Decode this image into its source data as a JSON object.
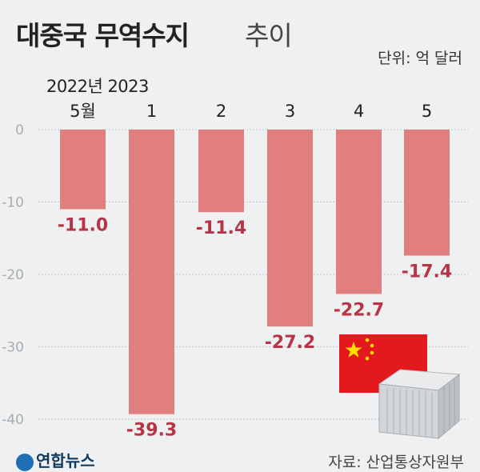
{
  "title": {
    "bold": "대중국 무역수지",
    "light": "추이"
  },
  "unit": "단위: 억 달러",
  "year_label": "2022년 2023",
  "credit": "연합뉴스",
  "source": "자료: 산업통상자원부",
  "colors": {
    "bar": "#e07f7e",
    "label": "#b73446",
    "grid": "#c4c7ca",
    "tick": "#a9acaf"
  },
  "decor": {
    "flag": "china-flag-icon",
    "container": "cargo-container-icon"
  },
  "chart_data": {
    "type": "bar",
    "categories": [
      "5월",
      "1",
      "2",
      "3",
      "4",
      "5"
    ],
    "values": [
      -11.0,
      -39.3,
      -11.4,
      -27.2,
      -22.7,
      -17.4
    ],
    "value_labels": [
      "-11.0",
      "-39.3",
      "-11.4",
      "-27.2",
      "-22.7",
      "-17.4"
    ],
    "yticks": [
      "0",
      "-10",
      "-20",
      "-30",
      "-40"
    ],
    "ylim": [
      -42,
      0
    ],
    "grid": true,
    "legend": "none"
  }
}
